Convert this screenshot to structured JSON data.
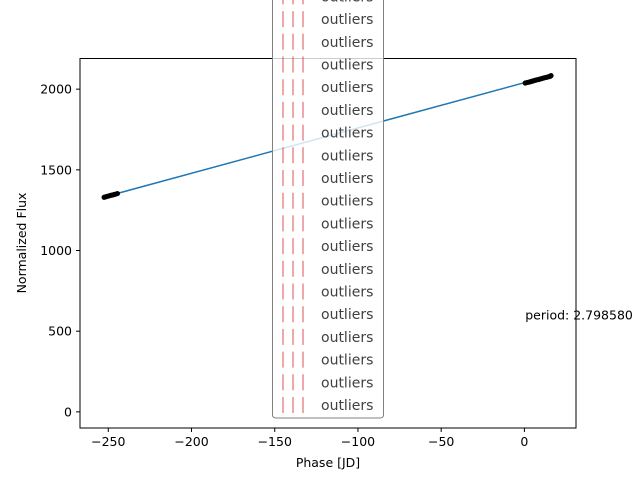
{
  "chart_data": {
    "type": "scatter",
    "title": "",
    "xlabel": "Phase [JD]",
    "ylabel": "Normalized Flux",
    "xlim": [
      -267,
      31
    ],
    "ylim": [
      -100,
      2190
    ],
    "xticks": [
      -250,
      -200,
      -150,
      -100,
      -50,
      0
    ],
    "xtick_labels": [
      "−250",
      "−200",
      "−150",
      "−100",
      "−50",
      "0"
    ],
    "yticks": [
      0,
      500,
      1000,
      1500,
      2000
    ],
    "ytick_labels": [
      "0",
      "500",
      "1000",
      "1500",
      "2000"
    ],
    "grid": false,
    "fit_line": {
      "color": "#1f77b4",
      "x": [
        -253,
        16
      ],
      "y": [
        1330,
        2085
      ]
    },
    "series": [
      {
        "color": "#000000",
        "x": [
          -252.5,
          -251.5,
          -250.5,
          -249.5,
          -248.5,
          -247.5,
          -246.5,
          -245.5,
          -244.5,
          0.5,
          1.5,
          2.5,
          3.5,
          4.5,
          5.5,
          6.5,
          7.5,
          8.5,
          9.5,
          10.5,
          11.5,
          12.5,
          13.5,
          14.5,
          15.5,
          16.0
        ],
        "y": [
          1330,
          1333,
          1336,
          1339,
          1342,
          1344,
          1347,
          1350,
          1353,
          2038,
          2041,
          2043,
          2046,
          2049,
          2052,
          2055,
          2058,
          2060,
          2063,
          2066,
          2069,
          2072,
          2074,
          2077,
          2080,
          2084
        ]
      }
    ],
    "annotation": {
      "text": "period: 2.798580",
      "x": 0.5,
      "y": 600
    },
    "legend": {
      "placement": "center",
      "marker_color": "#d62728",
      "entries": [
        "outliers",
        "outliers",
        "outliers",
        "outliers",
        "outliers",
        "outliers",
        "outliers",
        "outliers",
        "outliers",
        "outliers",
        "outliers",
        "outliers",
        "outliers",
        "outliers",
        "outliers",
        "outliers",
        "outliers",
        "outliers",
        "outliers",
        "outliers"
      ]
    }
  }
}
